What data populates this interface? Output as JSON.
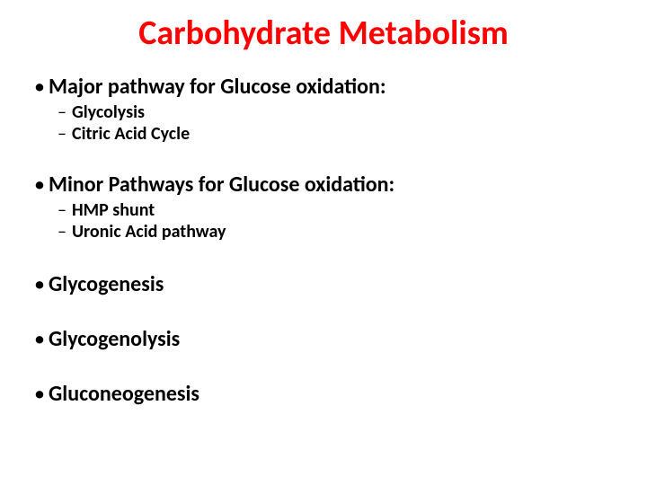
{
  "title": {
    "text": "Carbohydrate Metabolism",
    "color": "#ff0000",
    "fontsize": 38
  },
  "bullets": {
    "level1_fontsize": 24,
    "level1_color": "#000000",
    "sub_fontsize": 20,
    "sub_color": "#000000",
    "dot": "•",
    "dash": "–",
    "items": [
      {
        "text": "Major pathway for Glucose oxidation:",
        "bold": true,
        "sub": [
          "Glycolysis",
          "Citric Acid Cycle"
        ]
      },
      {
        "text": "Minor Pathways for Glucose oxidation:",
        "bold": true,
        "sub": [
          "HMP shunt",
          "Uronic Acid pathway"
        ]
      },
      {
        "text": "Glycogenesis",
        "bold": true,
        "sub": []
      },
      {
        "text": "Glycogenolysis",
        "bold": true,
        "sub": []
      },
      {
        "text": "Gluconeogenesis",
        "bold": true,
        "sub": []
      }
    ]
  }
}
